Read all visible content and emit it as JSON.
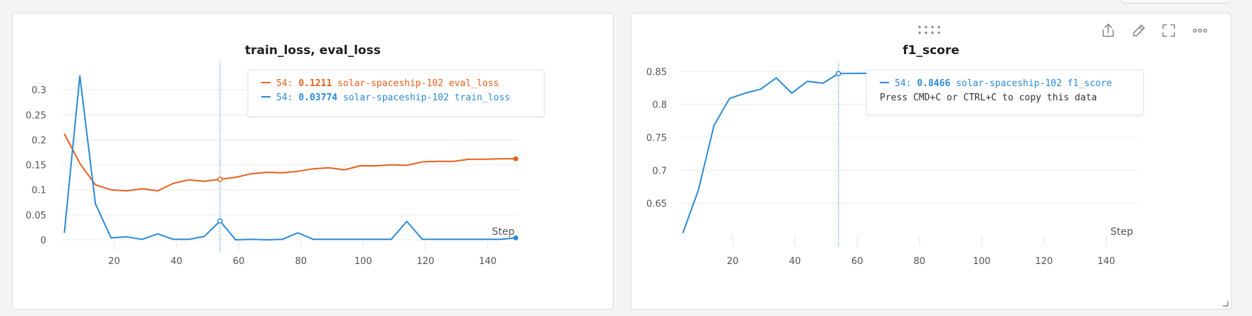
{
  "chart_data": [
    {
      "type": "line",
      "title": "train_loss, eval_loss",
      "xlabel": "Step",
      "ylabel": "",
      "xlim": [
        3,
        150
      ],
      "ylim": [
        0,
        0.35
      ],
      "x_ticks": [
        20,
        40,
        60,
        80,
        100,
        120,
        140
      ],
      "y_ticks": [
        0,
        0.05,
        0.1,
        0.15,
        0.2,
        0.25,
        0.3
      ],
      "y_tick_labels": [
        "0",
        "0.05",
        "0.1",
        "0.15",
        "0.2",
        "0.25",
        "0.3"
      ],
      "grid": true,
      "hover_step": 54,
      "series": [
        {
          "name": "solar-spaceship-102 eval_loss",
          "color": "#e8601c",
          "x": [
            4,
            9,
            14,
            19,
            24,
            29,
            34,
            39,
            44,
            49,
            54,
            59,
            64,
            69,
            74,
            79,
            84,
            89,
            94,
            99,
            104,
            109,
            114,
            119,
            124,
            129,
            134,
            139,
            144,
            149
          ],
          "y": [
            0.212,
            0.153,
            0.11,
            0.1,
            0.098,
            0.102,
            0.098,
            0.113,
            0.12,
            0.117,
            0.1211,
            0.125,
            0.132,
            0.135,
            0.134,
            0.137,
            0.142,
            0.144,
            0.14,
            0.148,
            0.148,
            0.15,
            0.149,
            0.156,
            0.157,
            0.157,
            0.161,
            0.161,
            0.162,
            0.162
          ]
        },
        {
          "name": "solar-spaceship-102 train_loss",
          "color": "#2b8ad9",
          "x": [
            4,
            9,
            14,
            19,
            24,
            29,
            34,
            39,
            44,
            49,
            54,
            59,
            64,
            69,
            74,
            79,
            84,
            89,
            94,
            99,
            104,
            109,
            114,
            119,
            124,
            129,
            134,
            139,
            144,
            149
          ],
          "y": [
            0.014,
            0.328,
            0.072,
            0.004,
            0.006,
            0.001,
            0.012,
            0.001,
            0.001,
            0.007,
            0.03774,
            0.0,
            0.001,
            0.0,
            0.001,
            0.014,
            0.001,
            0.001,
            0.001,
            0.001,
            0.001,
            0.001,
            0.037,
            0.001,
            0.001,
            0.001,
            0.001,
            0.001,
            0.001,
            0.004
          ]
        }
      ],
      "tooltip": [
        {
          "step": "54:",
          "value": "0.1211",
          "name": "solar-spaceship-102 eval_loss",
          "color": "#e8601c"
        },
        {
          "step": "54:",
          "value": "0.03774",
          "name": "solar-spaceship-102 train_loss",
          "color": "#2b8ad9"
        }
      ]
    },
    {
      "type": "line",
      "title": "f1_score",
      "xlabel": "Step",
      "ylabel": "",
      "xlim": [
        3,
        150
      ],
      "ylim": [
        0.6,
        0.86
      ],
      "x_ticks": [
        20,
        40,
        60,
        80,
        100,
        120,
        140
      ],
      "y_ticks": [
        0.65,
        0.7,
        0.75,
        0.8,
        0.85
      ],
      "y_tick_labels": [
        "0.65",
        "0.7",
        "0.75",
        "0.8",
        "0.85"
      ],
      "grid": true,
      "hover_step": 54,
      "series": [
        {
          "name": "solar-spaceship-102 f1_score",
          "color": "#2b8ad9",
          "x": [
            4,
            9,
            14,
            19,
            24,
            29,
            34,
            39,
            44,
            49,
            54,
            129,
            134,
            139,
            144,
            149
          ],
          "y": [
            0.605,
            0.67,
            0.768,
            0.809,
            0.817,
            0.823,
            0.84,
            0.817,
            0.835,
            0.832,
            0.8466,
            0.85,
            0.847,
            0.843,
            0.844,
            0.843
          ]
        }
      ],
      "tooltip": [
        {
          "step": "54:",
          "value": "0.8466",
          "name": "solar-spaceship-102 f1_score",
          "color": "#2b8ad9"
        }
      ],
      "tooltip_hint": "Press CMD+C or CTRL+C to copy this data"
    }
  ]
}
